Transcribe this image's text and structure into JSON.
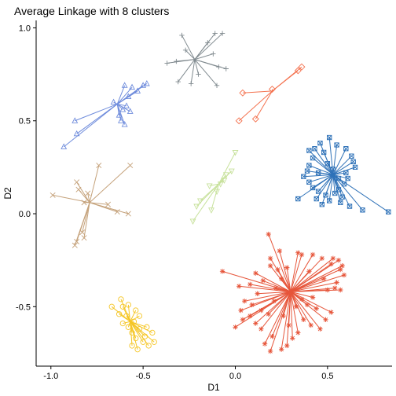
{
  "chart_data": {
    "type": "scatter",
    "title": "Average Linkage with 8 clusters",
    "xlabel": "D1",
    "ylabel": "D2",
    "xlim": [
      -1.08,
      0.85
    ],
    "ylim": [
      -0.82,
      1.04
    ],
    "xticks": [
      -1.0,
      -0.5,
      0.0,
      0.5
    ],
    "xtick_labels": [
      "-1.0",
      "-0.5",
      "0.0",
      "0.5"
    ],
    "yticks": [
      -0.5,
      0.0,
      0.5,
      1.0
    ],
    "ytick_labels": [
      "-0.5",
      "0.0",
      "0.5",
      "1.0"
    ],
    "grid": false,
    "legend": "none",
    "series": [
      {
        "marker": "plus",
        "color": "#808a8f",
        "center": [
          -0.22,
          0.83
        ],
        "points": [
          [
            -0.29,
            0.96
          ],
          [
            -0.11,
            0.97
          ],
          [
            -0.07,
            0.97
          ],
          [
            -0.37,
            0.81
          ],
          [
            -0.32,
            0.82
          ],
          [
            -0.09,
            0.79
          ],
          [
            -0.05,
            0.78
          ],
          [
            -0.31,
            0.71
          ],
          [
            -0.24,
            0.7
          ],
          [
            -0.1,
            0.69
          ],
          [
            -0.27,
            0.88
          ],
          [
            -0.15,
            0.92
          ],
          [
            -0.2,
            0.75
          ],
          [
            -0.12,
            0.86
          ]
        ]
      },
      {
        "marker": "diamond",
        "color": "#f4724f",
        "center": [
          0.2,
          0.66
        ],
        "points": [
          [
            0.36,
            0.79
          ],
          [
            0.34,
            0.77
          ],
          [
            0.2,
            0.67
          ],
          [
            0.04,
            0.65
          ],
          [
            0.11,
            0.51
          ],
          [
            0.02,
            0.5
          ]
        ]
      },
      {
        "marker": "triangle-up",
        "color": "#6f8cdc",
        "center": [
          -0.64,
          0.59
        ],
        "points": [
          [
            -0.87,
            0.5
          ],
          [
            -0.86,
            0.43
          ],
          [
            -0.93,
            0.36
          ],
          [
            -0.6,
            0.69
          ],
          [
            -0.56,
            0.68
          ],
          [
            -0.5,
            0.69
          ],
          [
            -0.53,
            0.66
          ],
          [
            -0.48,
            0.7
          ],
          [
            -0.58,
            0.63
          ],
          [
            -0.61,
            0.56
          ],
          [
            -0.63,
            0.53
          ],
          [
            -0.6,
            0.48
          ],
          [
            -0.66,
            0.6
          ],
          [
            -0.59,
            0.58
          ],
          [
            -0.57,
            0.55
          ],
          [
            -0.62,
            0.5
          ]
        ]
      },
      {
        "marker": "square-x",
        "color": "#2f72b8",
        "center": [
          0.53,
          0.21
        ],
        "points": [
          [
            0.51,
            0.41
          ],
          [
            0.46,
            0.38
          ],
          [
            0.55,
            0.37
          ],
          [
            0.43,
            0.35
          ],
          [
            0.6,
            0.35
          ],
          [
            0.4,
            0.34
          ],
          [
            0.48,
            0.33
          ],
          [
            0.63,
            0.31
          ],
          [
            0.42,
            0.3
          ],
          [
            0.64,
            0.28
          ],
          [
            0.4,
            0.26
          ],
          [
            0.65,
            0.25
          ],
          [
            0.39,
            0.23
          ],
          [
            0.6,
            0.22
          ],
          [
            0.37,
            0.2
          ],
          [
            0.56,
            0.19
          ],
          [
            0.4,
            0.17
          ],
          [
            0.59,
            0.16
          ],
          [
            0.42,
            0.14
          ],
          [
            0.56,
            0.13
          ],
          [
            0.45,
            0.12
          ],
          [
            0.54,
            0.11
          ],
          [
            0.49,
            0.1
          ],
          [
            0.58,
            0.09
          ],
          [
            0.34,
            0.08
          ],
          [
            0.44,
            0.08
          ],
          [
            0.51,
            0.07
          ],
          [
            0.57,
            0.06
          ],
          [
            0.47,
            0.05
          ],
          [
            0.62,
            0.04
          ],
          [
            0.69,
            0.02
          ],
          [
            0.83,
            0.01
          ],
          [
            0.53,
            0.24
          ],
          [
            0.5,
            0.27
          ],
          [
            0.45,
            0.22
          ],
          [
            0.61,
            0.19
          ]
        ]
      },
      {
        "marker": "triangle-down",
        "color": "#c7e19b",
        "center": [
          -0.09,
          0.16
        ],
        "points": [
          [
            0.0,
            0.33
          ],
          [
            -0.02,
            0.23
          ],
          [
            -0.05,
            0.21
          ],
          [
            -0.08,
            0.16
          ],
          [
            -0.14,
            0.15
          ],
          [
            -0.19,
            0.07
          ],
          [
            -0.21,
            0.04
          ],
          [
            -0.13,
            0.02
          ],
          [
            -0.23,
            -0.04
          ],
          [
            -0.06,
            0.18
          ],
          [
            -0.1,
            0.12
          ]
        ]
      },
      {
        "marker": "x",
        "color": "#c5a27b",
        "center": [
          -0.79,
          0.06
        ],
        "points": [
          [
            -0.74,
            0.26
          ],
          [
            -0.57,
            0.26
          ],
          [
            -0.86,
            0.17
          ],
          [
            -0.85,
            0.13
          ],
          [
            -0.99,
            0.1
          ],
          [
            -0.82,
            0.06
          ],
          [
            -0.69,
            0.05
          ],
          [
            -0.64,
            0.01
          ],
          [
            -0.58,
            0.0
          ],
          [
            -0.83,
            -0.1
          ],
          [
            -0.86,
            -0.15
          ],
          [
            -0.87,
            -0.17
          ],
          [
            -0.82,
            -0.13
          ],
          [
            -0.8,
            0.11
          ]
        ]
      },
      {
        "marker": "asterisk",
        "color": "#e6553a",
        "center": [
          0.3,
          -0.42
        ],
        "points": [
          [
            0.18,
            -0.11
          ],
          [
            0.34,
            -0.21
          ],
          [
            0.24,
            -0.2
          ],
          [
            0.19,
            -0.24
          ],
          [
            0.36,
            -0.22
          ],
          [
            0.42,
            -0.22
          ],
          [
            0.47,
            -0.24
          ],
          [
            0.53,
            -0.24
          ],
          [
            0.56,
            -0.25
          ],
          [
            0.52,
            -0.27
          ],
          [
            0.58,
            -0.28
          ],
          [
            0.59,
            -0.33
          ],
          [
            0.57,
            -0.3
          ],
          [
            0.55,
            -0.37
          ],
          [
            0.54,
            -0.4
          ],
          [
            0.57,
            -0.41
          ],
          [
            0.5,
            -0.41
          ],
          [
            -0.07,
            -0.31
          ],
          [
            0.11,
            -0.32
          ],
          [
            0.23,
            -0.3
          ],
          [
            0.28,
            -0.29
          ],
          [
            0.19,
            -0.28
          ],
          [
            0.25,
            -0.35
          ],
          [
            0.15,
            -0.36
          ],
          [
            0.02,
            -0.39
          ],
          [
            0.08,
            -0.38
          ],
          [
            0.12,
            -0.43
          ],
          [
            0.05,
            -0.47
          ],
          [
            0.09,
            -0.49
          ],
          [
            0.03,
            -0.52
          ],
          [
            0.14,
            -0.52
          ],
          [
            0.18,
            -0.54
          ],
          [
            0.08,
            -0.55
          ],
          [
            0.04,
            -0.57
          ],
          [
            0.11,
            -0.59
          ],
          [
            0.0,
            -0.61
          ],
          [
            0.14,
            -0.62
          ],
          [
            0.2,
            -0.66
          ],
          [
            0.16,
            -0.7
          ],
          [
            0.19,
            -0.74
          ],
          [
            0.25,
            -0.73
          ],
          [
            0.28,
            -0.71
          ],
          [
            0.31,
            -0.67
          ],
          [
            0.34,
            -0.64
          ],
          [
            0.37,
            -0.57
          ],
          [
            0.41,
            -0.6
          ],
          [
            0.46,
            -0.62
          ],
          [
            0.49,
            -0.57
          ],
          [
            0.52,
            -0.53
          ],
          [
            0.44,
            -0.51
          ],
          [
            0.39,
            -0.49
          ],
          [
            0.36,
            -0.46
          ],
          [
            0.21,
            -0.47
          ],
          [
            0.33,
            -0.5
          ],
          [
            0.26,
            -0.55
          ],
          [
            0.29,
            -0.6
          ],
          [
            0.42,
            -0.45
          ],
          [
            0.48,
            -0.35
          ],
          [
            0.4,
            -0.31
          ],
          [
            0.22,
            -0.4
          ]
        ]
      },
      {
        "marker": "circle",
        "color": "#f5c625",
        "center": [
          -0.57,
          -0.58
        ],
        "points": [
          [
            -0.62,
            -0.46
          ],
          [
            -0.67,
            -0.5
          ],
          [
            -0.61,
            -0.5
          ],
          [
            -0.58,
            -0.49
          ],
          [
            -0.54,
            -0.52
          ],
          [
            -0.63,
            -0.54
          ],
          [
            -0.59,
            -0.55
          ],
          [
            -0.52,
            -0.55
          ],
          [
            -0.55,
            -0.58
          ],
          [
            -0.61,
            -0.59
          ],
          [
            -0.58,
            -0.61
          ],
          [
            -0.52,
            -0.62
          ],
          [
            -0.48,
            -0.61
          ],
          [
            -0.56,
            -0.64
          ],
          [
            -0.49,
            -0.66
          ],
          [
            -0.54,
            -0.67
          ],
          [
            -0.5,
            -0.69
          ],
          [
            -0.44,
            -0.69
          ],
          [
            -0.47,
            -0.71
          ],
          [
            -0.56,
            -0.71
          ],
          [
            -0.53,
            -0.73
          ],
          [
            -0.45,
            -0.64
          ]
        ]
      }
    ]
  }
}
